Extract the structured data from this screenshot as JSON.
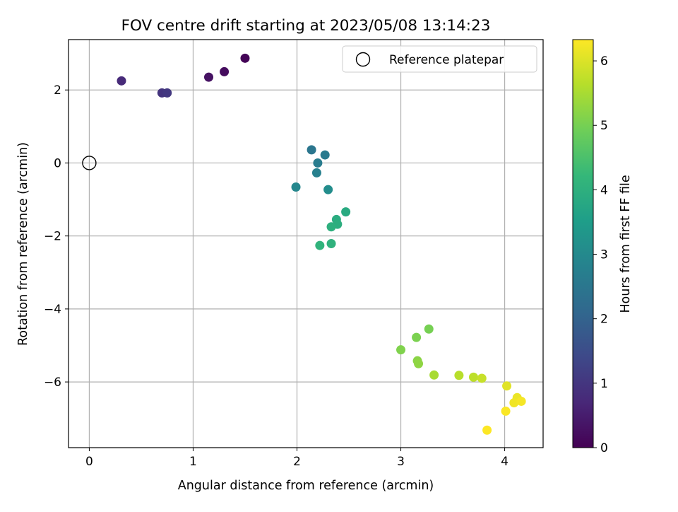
{
  "chart_data": {
    "type": "scatter",
    "title": "FOV centre drift starting at 2023/05/08 13:14:23",
    "xlabel": "Angular distance from reference (arcmin)",
    "ylabel": "Rotation from reference (arcmin)",
    "xlim": [
      -0.2,
      4.37
    ],
    "ylim": [
      -7.8,
      3.38
    ],
    "xticks": [
      0,
      1,
      2,
      3,
      4
    ],
    "yticks": [
      -6,
      -4,
      -2,
      0,
      2
    ],
    "grid": true,
    "legend": {
      "position": "top-right",
      "entries": [
        "Reference platepar"
      ]
    },
    "reference_point": {
      "x": 0,
      "y": 0
    },
    "colorbar": {
      "label": "Hours from first FF file",
      "range": [
        0,
        6.33
      ],
      "ticks": [
        0,
        1,
        2,
        3,
        4,
        5,
        6
      ],
      "colormap": "viridis"
    },
    "points": [
      {
        "x": 1.5,
        "y": 2.87,
        "c": 0.05
      },
      {
        "x": 1.3,
        "y": 2.5,
        "c": 0.2
      },
      {
        "x": 1.15,
        "y": 2.35,
        "c": 0.3
      },
      {
        "x": 0.31,
        "y": 2.25,
        "c": 0.75
      },
      {
        "x": 0.7,
        "y": 1.92,
        "c": 0.95
      },
      {
        "x": 0.75,
        "y": 1.92,
        "c": 1.05
      },
      {
        "x": 2.14,
        "y": 0.36,
        "c": 2.5
      },
      {
        "x": 2.27,
        "y": 0.22,
        "c": 2.6
      },
      {
        "x": 2.2,
        "y": 0.0,
        "c": 2.65
      },
      {
        "x": 2.19,
        "y": -0.27,
        "c": 2.75
      },
      {
        "x": 1.99,
        "y": -0.66,
        "c": 2.95
      },
      {
        "x": 2.3,
        "y": -0.73,
        "c": 3.1
      },
      {
        "x": 2.47,
        "y": -1.34,
        "c": 3.85
      },
      {
        "x": 2.38,
        "y": -1.55,
        "c": 3.9
      },
      {
        "x": 2.39,
        "y": -1.68,
        "c": 3.95
      },
      {
        "x": 2.33,
        "y": -1.75,
        "c": 4.0
      },
      {
        "x": 2.33,
        "y": -2.21,
        "c": 4.05
      },
      {
        "x": 2.22,
        "y": -2.26,
        "c": 4.1
      },
      {
        "x": 3.27,
        "y": -4.55,
        "c": 5.0
      },
      {
        "x": 3.15,
        "y": -4.78,
        "c": 5.05
      },
      {
        "x": 3.0,
        "y": -5.12,
        "c": 5.1
      },
      {
        "x": 3.16,
        "y": -5.42,
        "c": 5.2
      },
      {
        "x": 3.17,
        "y": -5.5,
        "c": 5.25
      },
      {
        "x": 3.32,
        "y": -5.81,
        "c": 5.5
      },
      {
        "x": 3.56,
        "y": -5.82,
        "c": 5.65
      },
      {
        "x": 3.7,
        "y": -5.87,
        "c": 5.7
      },
      {
        "x": 3.78,
        "y": -5.9,
        "c": 5.8
      },
      {
        "x": 4.02,
        "y": -6.11,
        "c": 6.05
      },
      {
        "x": 4.12,
        "y": -6.43,
        "c": 6.15
      },
      {
        "x": 4.09,
        "y": -6.57,
        "c": 6.2
      },
      {
        "x": 4.16,
        "y": -6.53,
        "c": 6.25
      },
      {
        "x": 4.01,
        "y": -6.8,
        "c": 6.3
      },
      {
        "x": 3.83,
        "y": -7.32,
        "c": 6.32
      }
    ]
  }
}
